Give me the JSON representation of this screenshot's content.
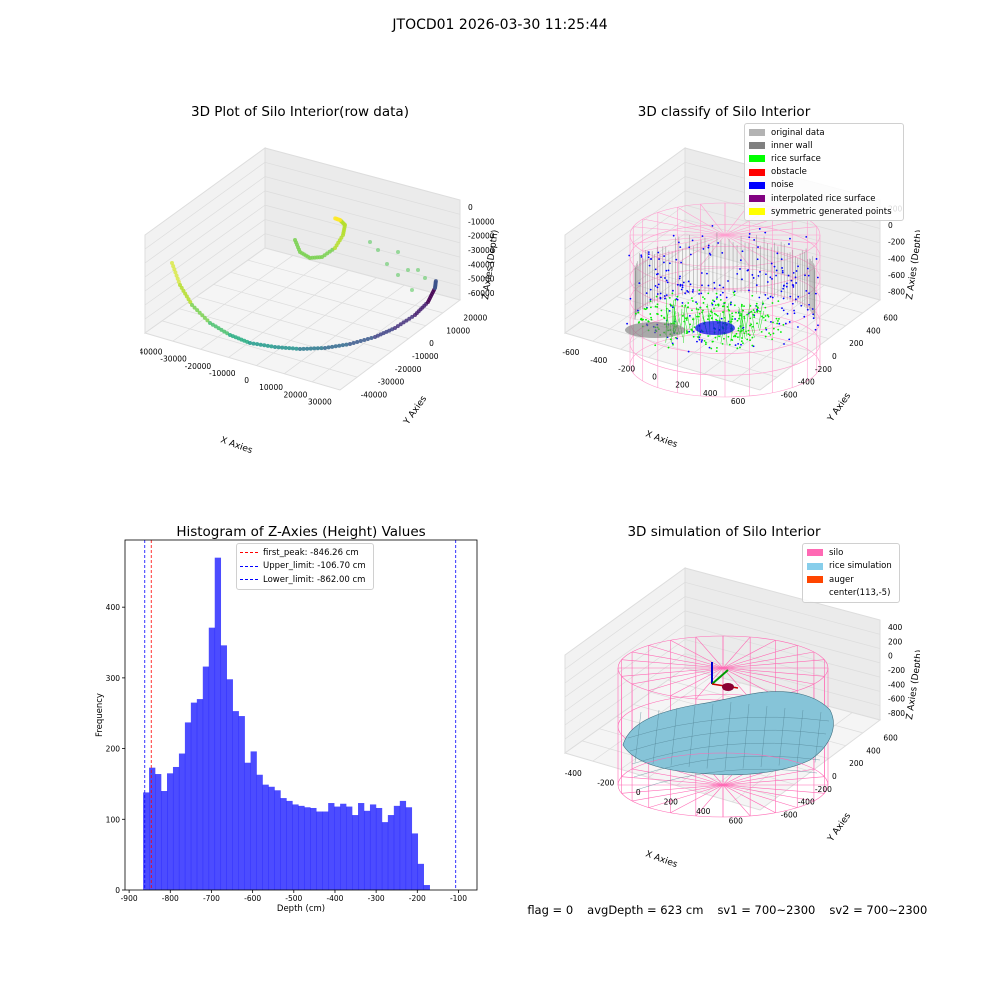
{
  "suptitle": "JTOCD01 2026-03-30 11:25:44",
  "panels": {
    "raw": {
      "title": "3D Plot of Silo Interior(row data)",
      "xlabel": "X Axies",
      "ylabel": "Y Axies",
      "zlabel": "Z Axies (Depth)",
      "x_ticks": [
        "-40000",
        "-30000",
        "-20000",
        "-10000",
        "0",
        "10000",
        "20000",
        "30000"
      ],
      "y_ticks": [
        "20000",
        "10000",
        "0",
        "-10000",
        "-20000",
        "-30000",
        "-40000"
      ],
      "z_ticks": [
        "0",
        "-10000",
        "-20000",
        "-30000",
        "-40000",
        "-50000",
        "-60000"
      ]
    },
    "classify": {
      "title": "3D classify of Silo Interior",
      "xlabel": "X Axies",
      "ylabel": "Y Axies",
      "zlabel": "Z Axies (Depth)",
      "x_ticks": [
        "-600",
        "-400",
        "-200",
        "0",
        "200",
        "400",
        "600"
      ],
      "y_ticks": [
        "600",
        "400",
        "200",
        "0",
        "-200",
        "-400",
        "-600"
      ],
      "z_ticks": [
        "200",
        "0",
        "-200",
        "-400",
        "-600",
        "-800"
      ],
      "legend": [
        {
          "label": "original data",
          "color": "#b3b3b3"
        },
        {
          "label": "inner wall",
          "color": "#808080"
        },
        {
          "label": "rice surface",
          "color": "#00ff00"
        },
        {
          "label": "obstacle",
          "color": "#ff0000"
        },
        {
          "label": "noise",
          "color": "#0000ff"
        },
        {
          "label": "interpolated rice surface",
          "color": "#800080"
        },
        {
          "label": "symmetric generated points",
          "color": "#ffff00"
        }
      ]
    },
    "simulation": {
      "title": "3D simulation of Silo Interior",
      "xlabel": "X Axies",
      "ylabel": "Y Axies",
      "zlabel": "Z Axies (Depth)",
      "x_ticks": [
        "-400",
        "-200",
        "0",
        "200",
        "400",
        "600"
      ],
      "y_ticks": [
        "600",
        "400",
        "200",
        "0",
        "-200",
        "-400",
        "-600"
      ],
      "z_ticks": [
        "400",
        "200",
        "0",
        "-200",
        "-400",
        "-600",
        "-800"
      ],
      "legend": [
        {
          "label": "silo",
          "color": "#ff69b4"
        },
        {
          "label": "rice simulation",
          "color": "#87ceeb"
        },
        {
          "label": "auger",
          "color": "#ff4500"
        },
        {
          "label": "center(113,-5)",
          "color": "#ffffff"
        }
      ]
    }
  },
  "status": {
    "flag": "flag = 0",
    "avg_depth": "avgDepth = 623 cm",
    "sv1": "sv1 = 700~2300",
    "sv2": "sv2 = 700~2300"
  },
  "chart_data": [
    {
      "type": "histogram",
      "title": "Histogram of Z-Axies (Height) Values",
      "xlabel": "Depth (cm)",
      "ylabel": "Frequency",
      "xlim": [
        -910,
        -55
      ],
      "ylim": [
        0,
        495
      ],
      "bar_color": "#0000ff",
      "bin_start": -866,
      "bin_width": 14.5,
      "values": [
        138,
        173,
        164,
        140,
        165,
        174,
        193,
        237,
        265,
        270,
        316,
        371,
        470,
        346,
        298,
        253,
        246,
        180,
        196,
        163,
        149,
        146,
        141,
        130,
        126,
        121,
        119,
        117,
        116,
        111,
        111,
        123,
        118,
        122,
        118,
        106,
        123,
        112,
        121,
        116,
        96,
        106,
        119,
        126,
        117,
        80,
        37,
        7
      ],
      "x_ticks": [
        -900,
        -800,
        -700,
        -600,
        -500,
        -400,
        -300,
        -200,
        -100
      ],
      "y_ticks": [
        0,
        100,
        200,
        300,
        400
      ],
      "vlines": [
        {
          "label": "first_peak: -846.26 cm",
          "x": -846.26,
          "color": "#ff0000"
        },
        {
          "label": "Upper_limit: -106.70 cm",
          "x": -106.7,
          "color": "#0000ff"
        },
        {
          "label": "Lower_limit: -862.00 cm",
          "x": -862.0,
          "color": "#0000ff"
        }
      ],
      "legend_position": "upper center"
    }
  ]
}
